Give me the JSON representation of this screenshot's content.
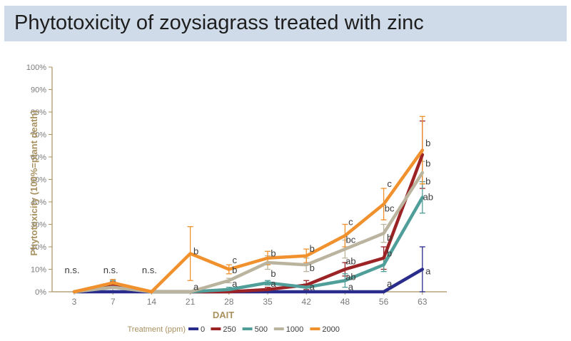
{
  "title": "Phytotoxicity of zoysiagrass treated with zinc",
  "colors": {
    "axis": "#a8905f",
    "axis_label": "#a8905f",
    "tick_text": "#7a7a7a",
    "title_bg": "#cfdbe8"
  },
  "chart_data": {
    "type": "line",
    "xlabel": "DAIT",
    "ylabel": "Phytotoxicity (100%=plant death)",
    "ylim": [
      0,
      100
    ],
    "yticks": [
      0,
      10,
      20,
      30,
      40,
      50,
      60,
      70,
      80,
      90,
      100
    ],
    "ytick_labels": [
      "0%",
      "10%",
      "20%",
      "30%",
      "40%",
      "50%",
      "60%",
      "70%",
      "80%",
      "90%",
      "100%"
    ],
    "categories": [
      "3",
      "7",
      "14",
      "21",
      "28",
      "35",
      "42",
      "48",
      "56",
      "63"
    ],
    "legend_title": "Treatment (ppm)",
    "legend_position": "bottom",
    "series": [
      {
        "name": "0",
        "color": "#2a2c8c",
        "values": [
          0,
          0,
          0,
          0,
          0,
          0,
          0,
          0,
          0,
          10
        ],
        "errors": [
          0,
          0,
          0,
          0,
          0,
          0,
          0,
          0,
          0,
          10
        ]
      },
      {
        "name": "250",
        "color": "#9b2325",
        "values": [
          0,
          3,
          0,
          0,
          0,
          1,
          3,
          10,
          15,
          61
        ],
        "errors": [
          0,
          1.5,
          0,
          0,
          0,
          1,
          2,
          3,
          5,
          15
        ]
      },
      {
        "name": "500",
        "color": "#4f9e99",
        "values": [
          0,
          2,
          0,
          0,
          1,
          4,
          2,
          5,
          12,
          42
        ],
        "errors": [
          0,
          3,
          0,
          0,
          1,
          1,
          1.5,
          3,
          3,
          7
        ]
      },
      {
        "name": "1000",
        "color": "#bab49e",
        "values": [
          0,
          2,
          0,
          0,
          5,
          13,
          12,
          19,
          26,
          53
        ],
        "errors": [
          0,
          1.5,
          0,
          0,
          1,
          3,
          3,
          4,
          4,
          5
        ]
      },
      {
        "name": "2000",
        "color": "#f0912e",
        "values": [
          0,
          4,
          0,
          17,
          10,
          15,
          16,
          25,
          39,
          63
        ],
        "errors": [
          0,
          1.5,
          0,
          12,
          2,
          3,
          3,
          5,
          7,
          15
        ]
      }
    ],
    "annotations": [
      {
        "text": "n.s.",
        "x": "3",
        "y": 9.5
      },
      {
        "text": "n.s.",
        "x": "7",
        "y": 9.5
      },
      {
        "text": "n.s.",
        "x": "14",
        "y": 9.5
      },
      {
        "text": "b",
        "x": "21",
        "y": 18
      },
      {
        "text": "a",
        "x": "21",
        "y": 2
      },
      {
        "text": "c",
        "x": "28",
        "y": 14
      },
      {
        "text": "b",
        "x": "28",
        "y": 9.5
      },
      {
        "text": "a",
        "x": "28",
        "y": 3.5
      },
      {
        "text": "b",
        "x": "35",
        "y": 17
      },
      {
        "text": "b",
        "x": "35",
        "y": 8
      },
      {
        "text": "a",
        "x": "35",
        "y": 3.5
      },
      {
        "text": "b",
        "x": "42",
        "y": 19
      },
      {
        "text": "b",
        "x": "42",
        "y": 10.5
      },
      {
        "text": "a",
        "x": "42",
        "y": 2
      },
      {
        "text": "c",
        "x": "48",
        "y": 31
      },
      {
        "text": "bc",
        "x": "48",
        "y": 23
      },
      {
        "text": "ab",
        "x": "48",
        "y": 13.5
      },
      {
        "text": "ab",
        "x": "48",
        "y": 6.5
      },
      {
        "text": "a",
        "x": "48",
        "y": 2
      },
      {
        "text": "c",
        "x": "56",
        "y": 48
      },
      {
        "text": "bc",
        "x": "56",
        "y": 37
      },
      {
        "text": "b",
        "x": "56",
        "y": 24
      },
      {
        "text": "b",
        "x": "56",
        "y": 17
      },
      {
        "text": "a",
        "x": "56",
        "y": 3.5
      },
      {
        "text": "b",
        "x": "63",
        "y": 66
      },
      {
        "text": "b",
        "x": "63",
        "y": 57
      },
      {
        "text": "b",
        "x": "63",
        "y": 49
      },
      {
        "text": "ab",
        "x": "63",
        "y": 42
      },
      {
        "text": "a",
        "x": "63",
        "y": 9
      }
    ]
  }
}
